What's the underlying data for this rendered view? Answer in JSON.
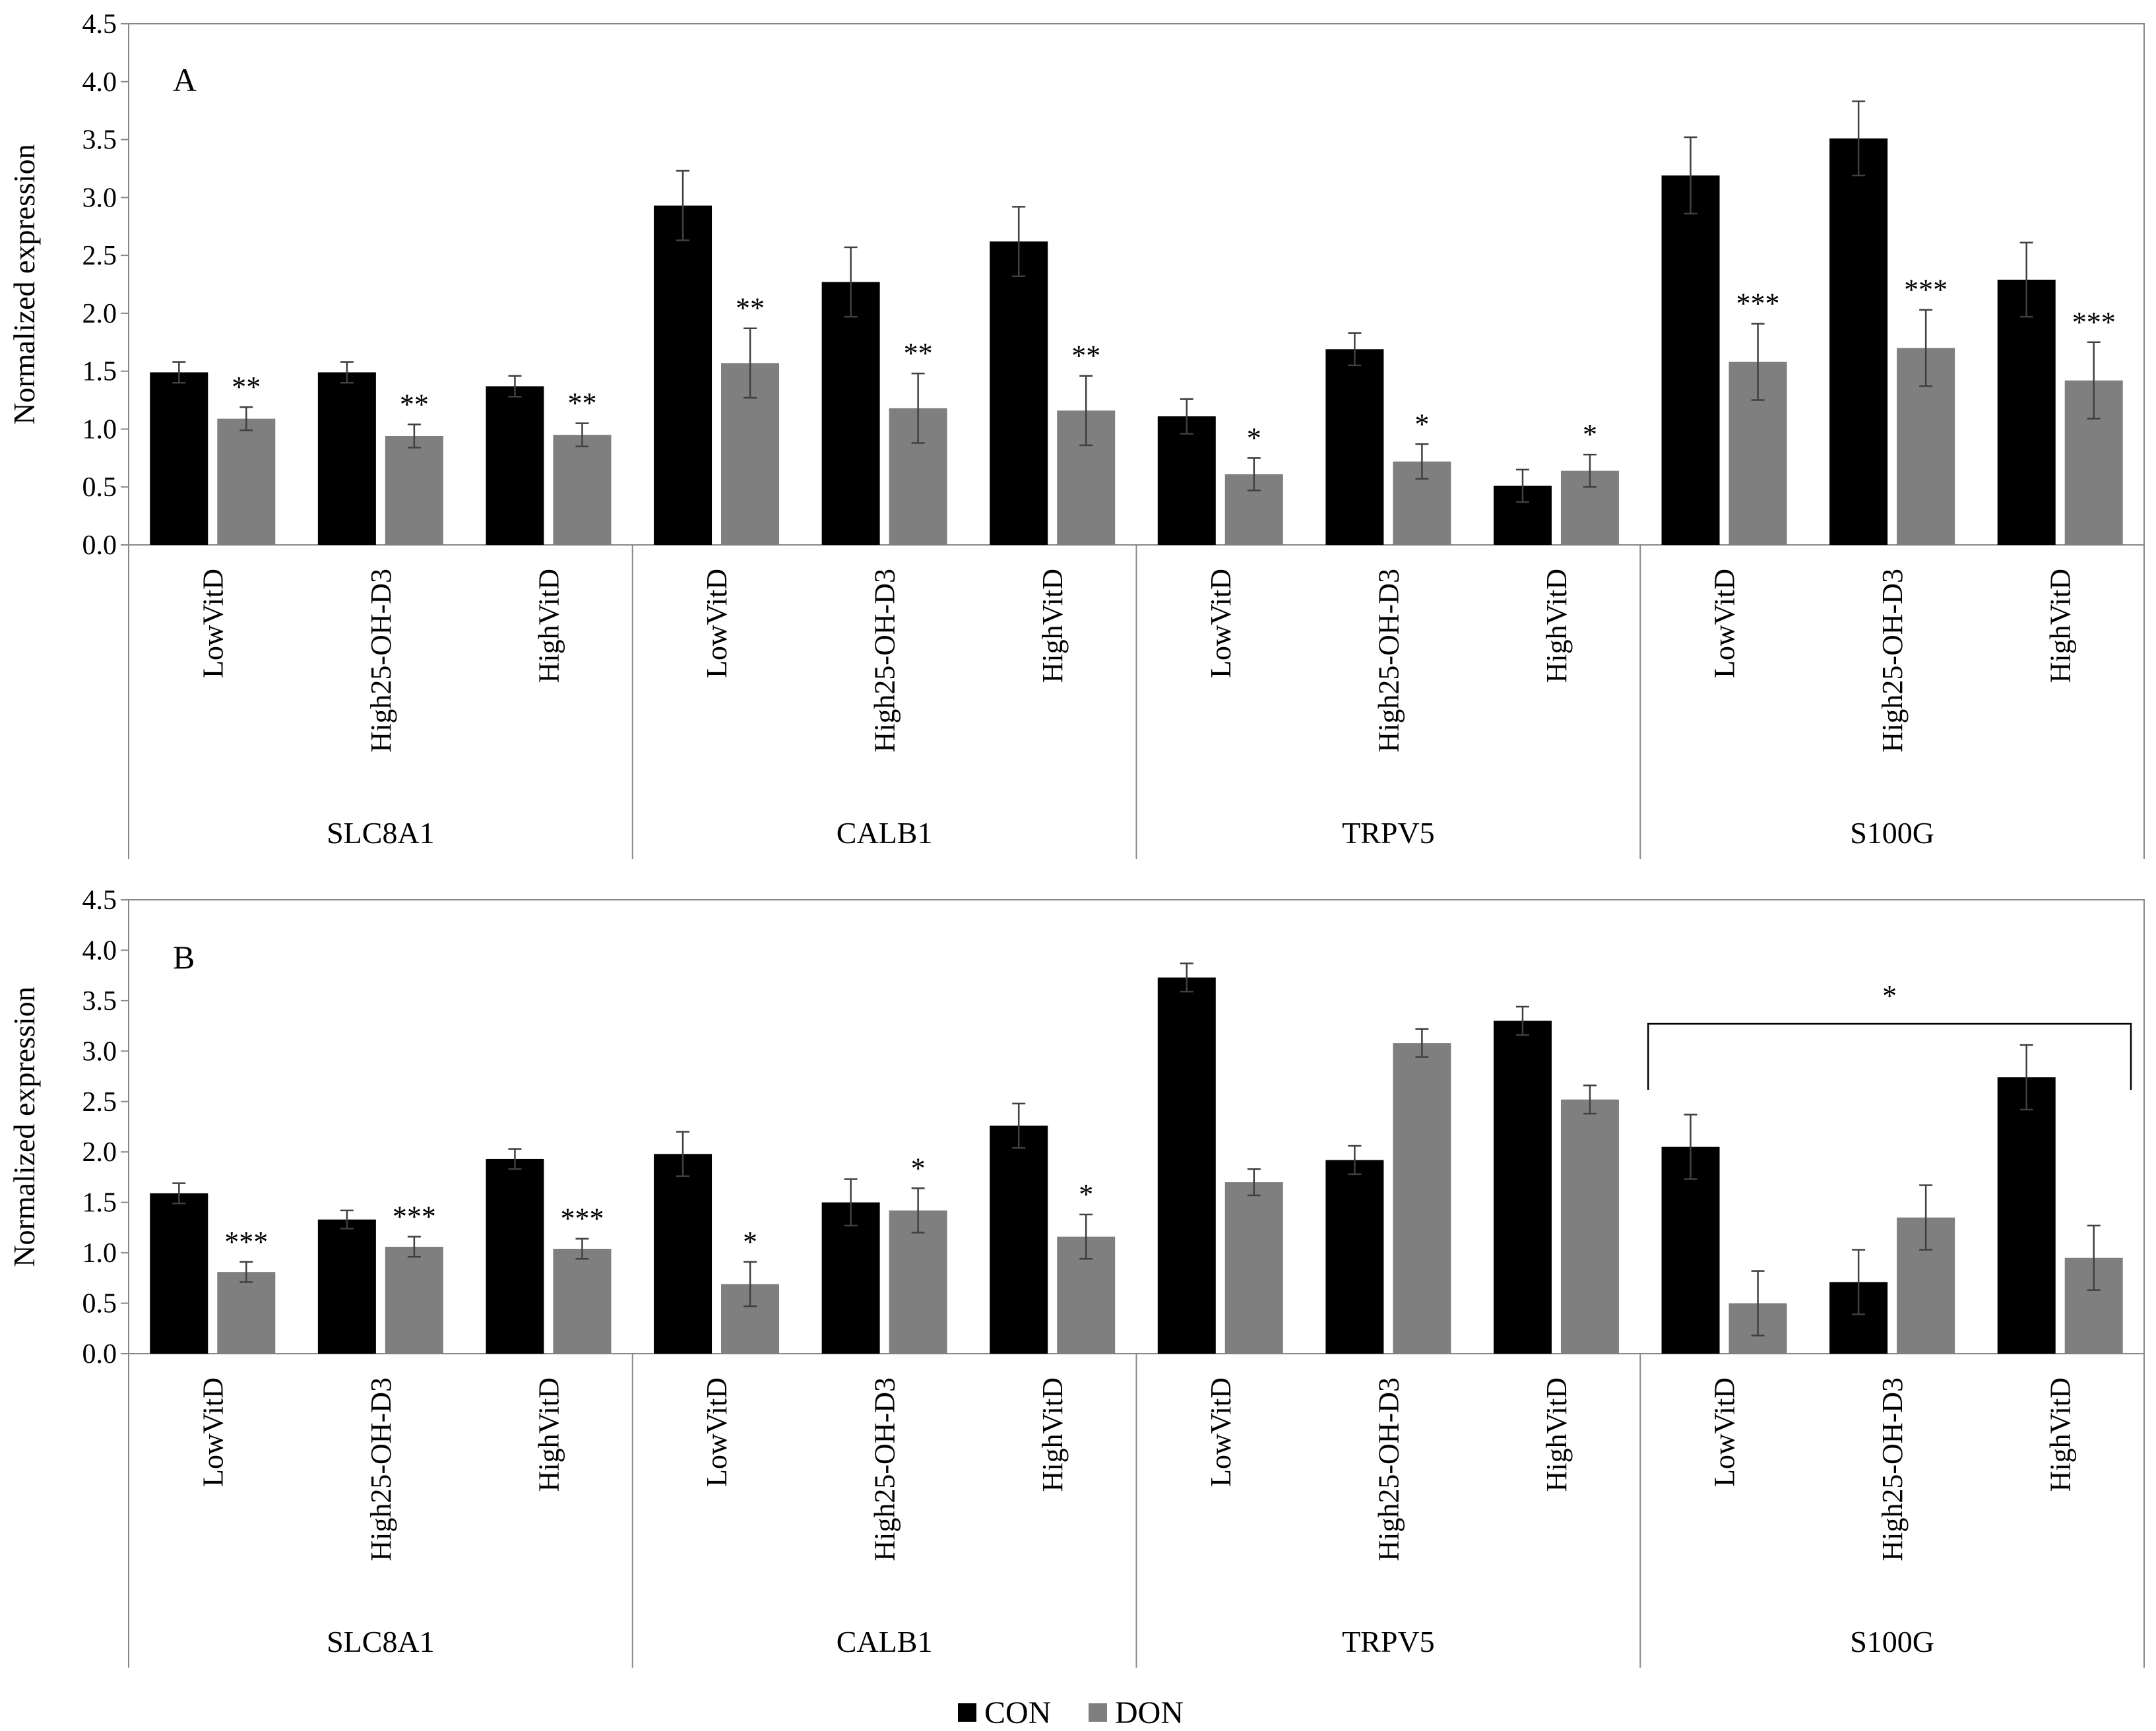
{
  "chart_data": [
    {
      "type": "bar",
      "panel": "A",
      "ylabel": "Normalized expression",
      "ylim": [
        0,
        4.5
      ],
      "yticks": [
        "0.0",
        "0.5",
        "1.0",
        "1.5",
        "2.0",
        "2.5",
        "3.0",
        "3.5",
        "4.0",
        "4.5"
      ],
      "groups": [
        "SLC8A1",
        "CALB1",
        "TRPV5",
        "S100G"
      ],
      "categories": [
        "LowVitD",
        "High25-OH-D3",
        "HighVitD"
      ],
      "series": [
        {
          "name": "CON",
          "color": "#000000",
          "values": [
            [
              1.49,
              1.49,
              1.37
            ],
            [
              2.93,
              2.27,
              2.62
            ],
            [
              1.11,
              1.69,
              0.51
            ],
            [
              3.19,
              3.51,
              2.29
            ]
          ],
          "errors": [
            [
              0.09,
              0.09,
              0.09
            ],
            [
              0.3,
              0.3,
              0.3
            ],
            [
              0.15,
              0.14,
              0.14
            ],
            [
              0.33,
              0.32,
              0.32
            ]
          ]
        },
        {
          "name": "DON",
          "color": "#7f7f7f",
          "values": [
            [
              1.09,
              0.94,
              0.95
            ],
            [
              1.57,
              1.18,
              1.16
            ],
            [
              0.61,
              0.72,
              0.64
            ],
            [
              1.58,
              1.7,
              1.42
            ]
          ],
          "errors": [
            [
              0.1,
              0.1,
              0.1
            ],
            [
              0.3,
              0.3,
              0.3
            ],
            [
              0.14,
              0.15,
              0.14
            ],
            [
              0.33,
              0.33,
              0.33
            ]
          ]
        }
      ],
      "significance": [
        [
          "**",
          "**",
          "**"
        ],
        [
          "**",
          "**",
          "**"
        ],
        [
          "*",
          "*",
          "*"
        ],
        [
          "***",
          "***",
          "***"
        ]
      ],
      "bracket": null
    },
    {
      "type": "bar",
      "panel": "B",
      "ylabel": "Normalized expression",
      "ylim": [
        0,
        4.5
      ],
      "yticks": [
        "0.0",
        "0.5",
        "1.0",
        "1.5",
        "2.0",
        "2.5",
        "3.0",
        "3.5",
        "4.0",
        "4.5"
      ],
      "groups": [
        "SLC8A1",
        "CALB1",
        "TRPV5",
        "S100G"
      ],
      "categories": [
        "LowVitD",
        "High25-OH-D3",
        "HighVitD"
      ],
      "series": [
        {
          "name": "CON",
          "color": "#000000",
          "values": [
            [
              1.59,
              1.33,
              1.93
            ],
            [
              1.98,
              1.5,
              2.26
            ],
            [
              3.73,
              1.92,
              3.3
            ],
            [
              2.05,
              0.71,
              2.74
            ]
          ],
          "errors": [
            [
              0.1,
              0.09,
              0.1
            ],
            [
              0.22,
              0.23,
              0.22
            ],
            [
              0.14,
              0.14,
              0.14
            ],
            [
              0.32,
              0.32,
              0.32
            ]
          ]
        },
        {
          "name": "DON",
          "color": "#7f7f7f",
          "values": [
            [
              0.81,
              1.06,
              1.04
            ],
            [
              0.69,
              1.42,
              1.16
            ],
            [
              1.7,
              3.08,
              2.52
            ],
            [
              0.5,
              1.35,
              0.95
            ]
          ],
          "errors": [
            [
              0.1,
              0.1,
              0.1
            ],
            [
              0.22,
              0.22,
              0.22
            ],
            [
              0.13,
              0.14,
              0.14
            ],
            [
              0.32,
              0.32,
              0.32
            ]
          ]
        }
      ],
      "significance": [
        [
          "***",
          "***",
          "***"
        ],
        [
          "*",
          "*",
          "*"
        ],
        [
          "",
          "",
          ""
        ],
        [
          "",
          "",
          ""
        ]
      ],
      "bracket": {
        "group": "S100G",
        "label": "*",
        "y": 3.27
      }
    }
  ],
  "legend": {
    "items": [
      {
        "label": "CON",
        "color": "#000000"
      },
      {
        "label": "DON",
        "color": "#7f7f7f"
      }
    ]
  }
}
